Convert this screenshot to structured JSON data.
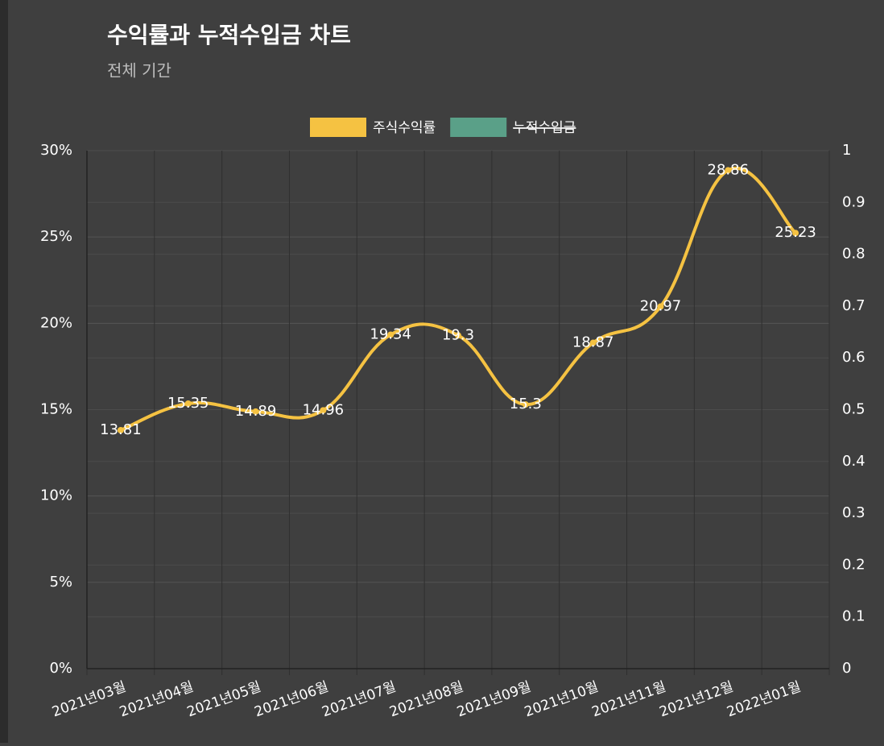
{
  "chart_data": {
    "type": "line",
    "title": "수익률과 누적수입금 차트",
    "subtitle": "전체 기간",
    "categories": [
      "2021년03월",
      "2021년04월",
      "2021년05월",
      "2021년06월",
      "2021년07월",
      "2021년08월",
      "2021년09월",
      "2021년10월",
      "2021년11월",
      "2021년12월",
      "2022년01월"
    ],
    "series": [
      {
        "name": "주식수익률",
        "color": "#f5c242",
        "values": [
          13.81,
          15.35,
          14.89,
          14.96,
          19.34,
          19.3,
          15.3,
          18.87,
          20.97,
          28.86,
          25.23
        ]
      },
      {
        "name": "누적수입금",
        "color": "#5aa088",
        "axis": "y2",
        "hidden": true,
        "values": [
          null,
          null,
          null,
          null,
          null,
          null,
          null,
          null,
          null,
          null,
          null
        ]
      }
    ],
    "ylim": [
      0,
      30
    ],
    "yticks": [
      {
        "value": 0,
        "label": "0%"
      },
      {
        "value": 5,
        "label": "5%"
      },
      {
        "value": 10,
        "label": "10%"
      },
      {
        "value": 15,
        "label": "15%"
      },
      {
        "value": 20,
        "label": "20%"
      },
      {
        "value": 25,
        "label": "25%"
      },
      {
        "value": 30,
        "label": "30%"
      }
    ],
    "y2lim": [
      0,
      1
    ],
    "y2ticks": [
      0,
      0.1,
      0.2,
      0.3,
      0.4,
      0.5,
      0.6,
      0.7,
      0.8,
      0.9,
      1
    ],
    "grid": true,
    "legend": "top"
  }
}
